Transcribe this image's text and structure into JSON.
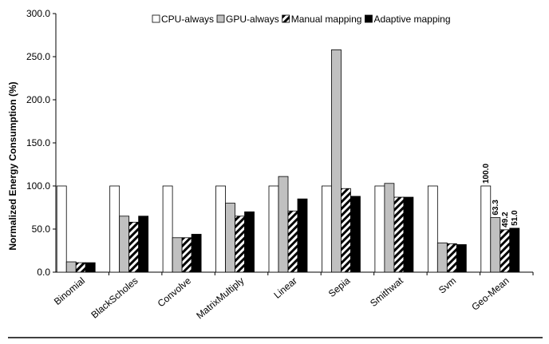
{
  "chart_data": {
    "type": "bar",
    "title": "",
    "xlabel": "",
    "ylabel": "Normalized Energy Consumption (%)",
    "ylim": [
      0,
      300
    ],
    "yticks": [
      "0.0",
      "50.0",
      "100.0",
      "150.0",
      "200.0",
      "250.0",
      "300.0"
    ],
    "grid": false,
    "legend_position": "top",
    "categories": [
      "Binomial",
      "BlackScholes",
      "Convolve",
      "MatrixMultiply",
      "Linear",
      "Sepia",
      "Smithwat",
      "Svm",
      "Geo-Mean"
    ],
    "series": [
      {
        "name": "CPU-always",
        "pattern": "white",
        "values": [
          100,
          100,
          100,
          100,
          100,
          100,
          100,
          100,
          100
        ]
      },
      {
        "name": "GPU-always",
        "pattern": "gray",
        "values": [
          12,
          65,
          40,
          80,
          111,
          258,
          103,
          34,
          63.3
        ]
      },
      {
        "name": "Manual mapping",
        "pattern": "hatch",
        "values": [
          11,
          58,
          40,
          65,
          71,
          97,
          87,
          33,
          49.2
        ]
      },
      {
        "name": "Adaptive mapping",
        "pattern": "black",
        "values": [
          11,
          65,
          44,
          70,
          85,
          88,
          87,
          32,
          51.0
        ]
      }
    ],
    "data_labels": {
      "category": "Geo-Mean",
      "labels": [
        "100.0",
        "63.3",
        "49.2",
        "51.0"
      ]
    }
  }
}
